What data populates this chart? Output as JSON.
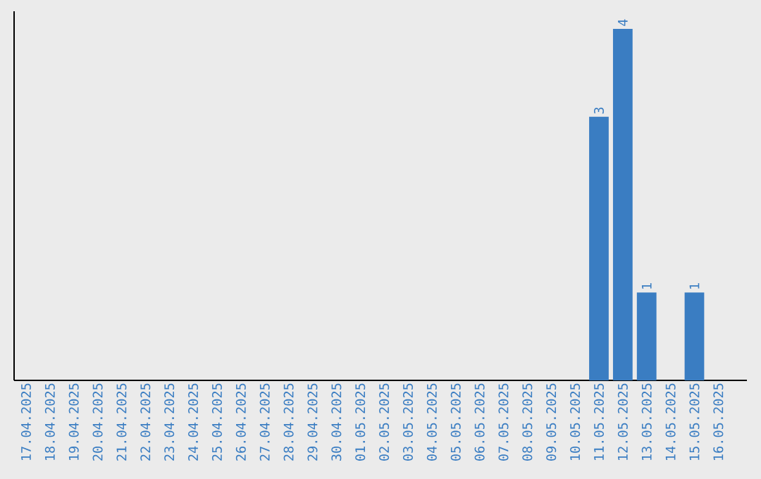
{
  "chart_data": {
    "type": "bar",
    "categories": [
      "17.04.2025",
      "18.04.2025",
      "19.04.2025",
      "20.04.2025",
      "21.04.2025",
      "22.04.2025",
      "23.04.2025",
      "24.04.2025",
      "25.04.2025",
      "26.04.2025",
      "27.04.2025",
      "28.04.2025",
      "29.04.2025",
      "30.04.2025",
      "01.05.2025",
      "02.05.2025",
      "03.05.2025",
      "04.05.2025",
      "05.05.2025",
      "06.05.2025",
      "07.05.2025",
      "08.05.2025",
      "09.05.2025",
      "10.05.2025",
      "11.05.2025",
      "12.05.2025",
      "13.05.2025",
      "14.05.2025",
      "15.05.2025",
      "16.05.2025"
    ],
    "values": [
      null,
      null,
      null,
      null,
      null,
      null,
      null,
      null,
      null,
      null,
      null,
      null,
      null,
      null,
      null,
      null,
      null,
      null,
      null,
      null,
      null,
      null,
      null,
      null,
      3,
      4,
      1,
      null,
      1,
      null
    ],
    "data_labels": true,
    "color": "#3a7dc2"
  }
}
